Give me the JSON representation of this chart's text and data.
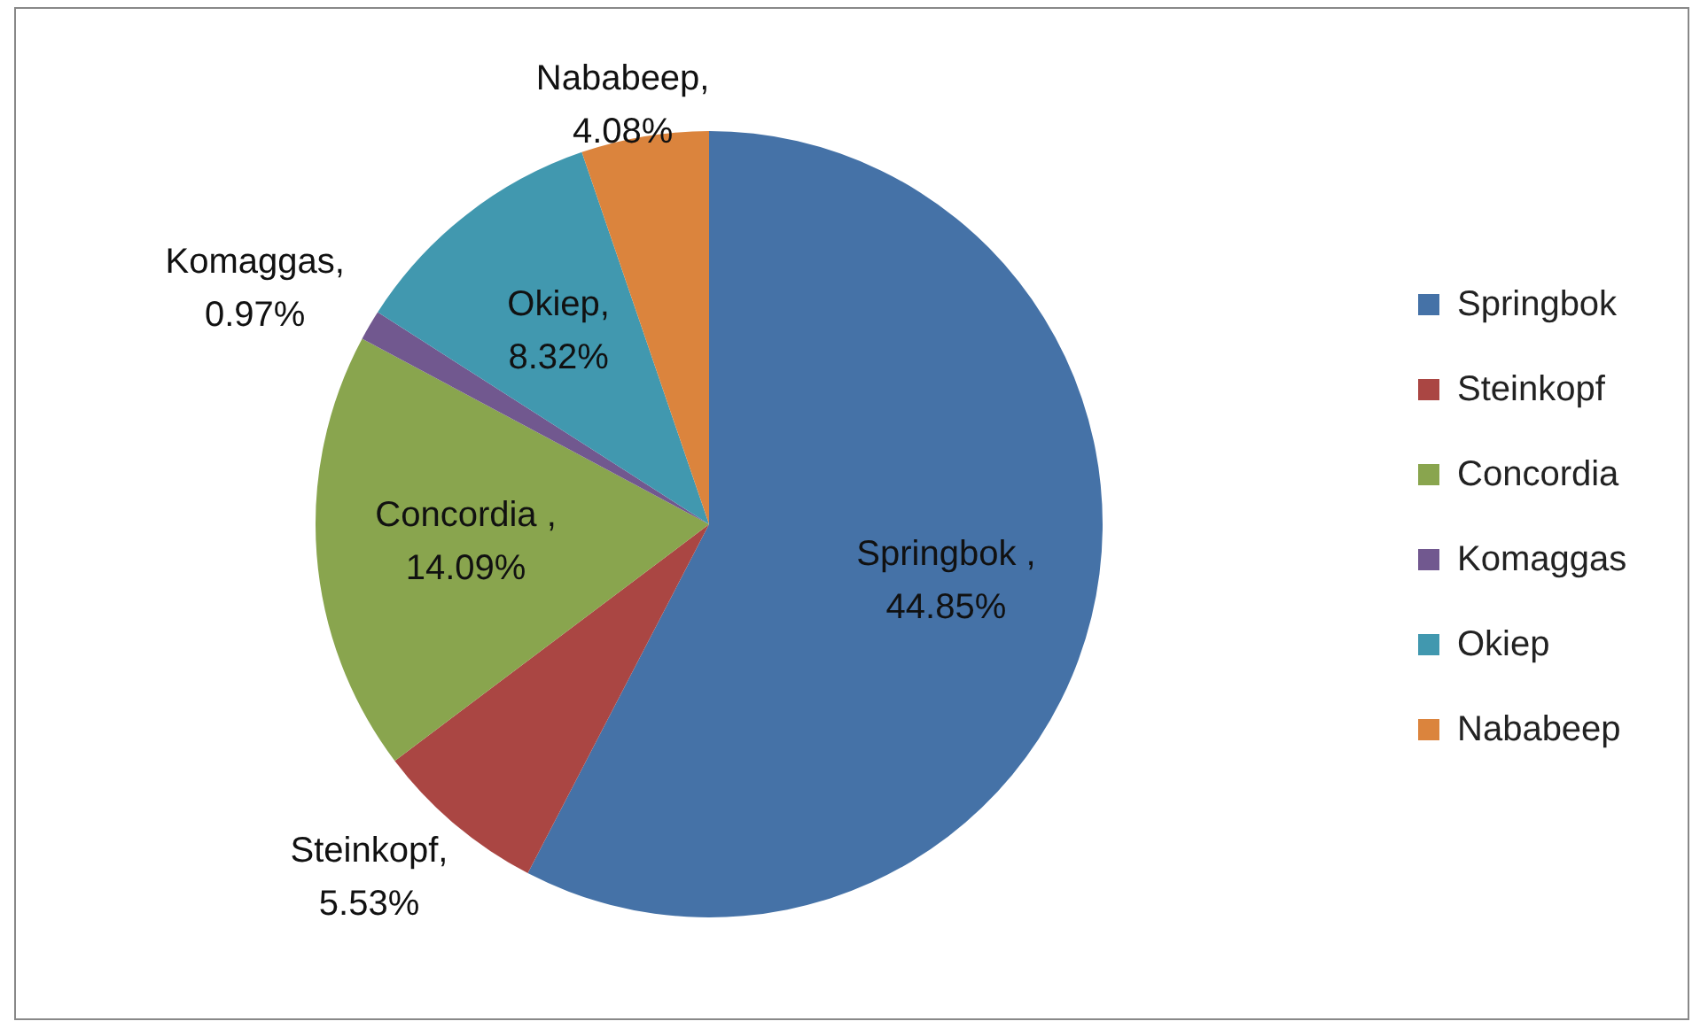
{
  "chart_data": {
    "type": "pie",
    "categories": [
      "Springbok",
      "Steinkopf",
      "Concordia",
      "Komaggas",
      "Okiep",
      "Nababeep"
    ],
    "values": [
      44.85,
      5.53,
      14.09,
      0.97,
      8.32,
      4.08
    ],
    "colors": [
      "#4572a7",
      "#aa4643",
      "#89a54e",
      "#71588f",
      "#4198af",
      "#db843d"
    ],
    "value_labels": [
      "Springbok , 44.85%",
      "Steinkopf, 5.53%",
      "Concordia , 14.09%",
      "Komaggas, 0.97%",
      "Okiep, 8.32%",
      "Nababeep, 4.08%"
    ],
    "legend": "right"
  }
}
